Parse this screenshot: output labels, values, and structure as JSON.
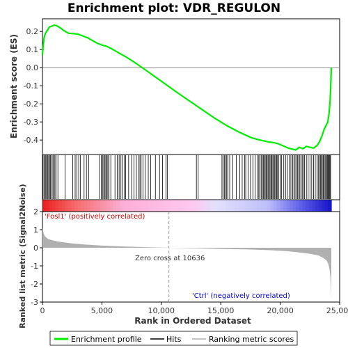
{
  "chart_data": {
    "type": "line",
    "title": "Enrichment plot: VDR_REGULON",
    "top_panel": {
      "ylabel": "Enrichment score (ES)",
      "ylim": [
        -0.48,
        0.27
      ],
      "yticks": [
        0.2,
        0.1,
        0.0,
        -0.1,
        -0.2,
        -0.3,
        -0.4
      ],
      "ytick_labels": [
        "0.2",
        "0.1",
        "0.0",
        "-0.1",
        "-0.2",
        "-0.3",
        "-0.4"
      ]
    },
    "bottom_panel": {
      "ylabel": "Ranked list metric (Signal2Noise)",
      "ylim": [
        -3,
        2
      ],
      "yticks": [
        2,
        1,
        0,
        -1,
        -2,
        -3
      ],
      "ytick_labels": [
        "2",
        "1",
        "0",
        "-1",
        "-2",
        "-3"
      ]
    },
    "xlabel": "Rank in Ordered Dataset",
    "xlim": [
      0,
      25000
    ],
    "xticks": [
      0,
      5000,
      10000,
      15000,
      20000,
      25000
    ],
    "xtick_labels": [
      "0",
      "5,000",
      "10,000",
      "15,000",
      "20,000",
      "25,000"
    ],
    "n_genes": 24300,
    "zero_cross": 10636,
    "zero_cross_label": "Zero cross at 10636",
    "pos_label": "'Fosl1' (positively correlated)",
    "neg_label": "'Ctrl' (negatively correlated)",
    "colors": {
      "es_line": "#00ee00",
      "pos_label": "#cc0000",
      "neg_label": "#0000cc",
      "metric_fill": "#b0b0b0"
    },
    "series": [
      {
        "name": "Enrichment profile",
        "x": [
          0,
          60,
          150,
          250,
          400,
          600,
          800,
          1000,
          1200,
          1500,
          1800,
          2200,
          2600,
          3000,
          3400,
          3800,
          4200,
          4600,
          5000,
          5400,
          5800,
          6200,
          6600,
          7000,
          7500,
          8000,
          8500,
          9000,
          9500,
          10000,
          10636,
          11500,
          12500,
          13500,
          14500,
          15500,
          16500,
          17500,
          18000,
          18500,
          19000,
          19500,
          19800,
          20100,
          20400,
          20700,
          21000,
          21300,
          21600,
          21900,
          22200,
          22500,
          22800,
          23100,
          23300,
          23500,
          23700,
          23850,
          24000,
          24100,
          24200,
          24250,
          24300
        ],
        "y": [
          0.07,
          0.12,
          0.17,
          0.19,
          0.205,
          0.225,
          0.23,
          0.235,
          0.232,
          0.22,
          0.205,
          0.19,
          0.188,
          0.185,
          0.175,
          0.165,
          0.15,
          0.135,
          0.125,
          0.118,
          0.105,
          0.09,
          0.075,
          0.06,
          0.04,
          0.018,
          -0.005,
          -0.028,
          -0.052,
          -0.075,
          -0.105,
          -0.145,
          -0.19,
          -0.235,
          -0.28,
          -0.32,
          -0.355,
          -0.385,
          -0.395,
          -0.403,
          -0.41,
          -0.415,
          -0.42,
          -0.428,
          -0.437,
          -0.445,
          -0.45,
          -0.455,
          -0.44,
          -0.448,
          -0.435,
          -0.44,
          -0.445,
          -0.43,
          -0.41,
          -0.38,
          -0.34,
          -0.32,
          -0.3,
          -0.26,
          -0.18,
          -0.1,
          0.0
        ]
      },
      {
        "name": "Hits",
        "positions": [
          30,
          120,
          200,
          280,
          350,
          430,
          520,
          600,
          680,
          780,
          880,
          960,
          1050,
          1150,
          1300,
          1900,
          2550,
          2750,
          2900,
          3050,
          3200,
          3500,
          3700,
          3900,
          4800,
          4950,
          5050,
          5150,
          5250,
          5330,
          5420,
          5500,
          5600,
          5750,
          6100,
          6300,
          6450,
          6600,
          6750,
          6900,
          7000,
          7250,
          7500,
          7700,
          7900,
          8100,
          8200,
          8300,
          8450,
          8650,
          8900,
          9100,
          9500,
          9850,
          10100,
          10400,
          10500,
          12950,
          13100,
          15100,
          15200,
          15300,
          15400,
          15500,
          15600,
          15750,
          16000,
          16300,
          16600,
          16800,
          17000,
          17100,
          17300,
          17500,
          17700,
          17900,
          18100,
          18200,
          18300,
          18400,
          18500,
          18580,
          18660,
          18740,
          18820,
          18900,
          18980,
          19060,
          19140,
          19220,
          19300,
          19380,
          19460,
          19540,
          19620,
          19700,
          19780,
          19860,
          20000,
          20100,
          20300,
          20450,
          20600,
          20750,
          20900,
          21050,
          21150,
          21250,
          21350,
          21450,
          21550,
          21650,
          21750,
          21850,
          21950,
          22050,
          22200,
          22350,
          22500,
          22650,
          22800,
          22950,
          23100,
          23200,
          23300,
          23380,
          23460,
          23540,
          23620,
          23700,
          23780,
          23860,
          23940,
          24000,
          24060,
          24120,
          24180,
          24240
        ]
      },
      {
        "name": "Ranking metric scores",
        "x": [
          0,
          40,
          100,
          200,
          350,
          500,
          800,
          1200,
          1800,
          2500,
          3500,
          5000,
          7000,
          9000,
          10636,
          13000,
          15000,
          17000,
          19000,
          20500,
          21500,
          22500,
          23200,
          23600,
          23900,
          24050,
          24150,
          24220,
          24270,
          24300
        ],
        "y": [
          1.1,
          0.95,
          0.8,
          0.65,
          0.55,
          0.48,
          0.42,
          0.36,
          0.3,
          0.24,
          0.18,
          0.12,
          0.07,
          0.03,
          0.0,
          -0.03,
          -0.06,
          -0.09,
          -0.13,
          -0.18,
          -0.25,
          -0.33,
          -0.42,
          -0.55,
          -0.7,
          -0.9,
          -1.2,
          -1.6,
          -2.2,
          -2.8
        ]
      }
    ],
    "legend_position": "bottom"
  }
}
